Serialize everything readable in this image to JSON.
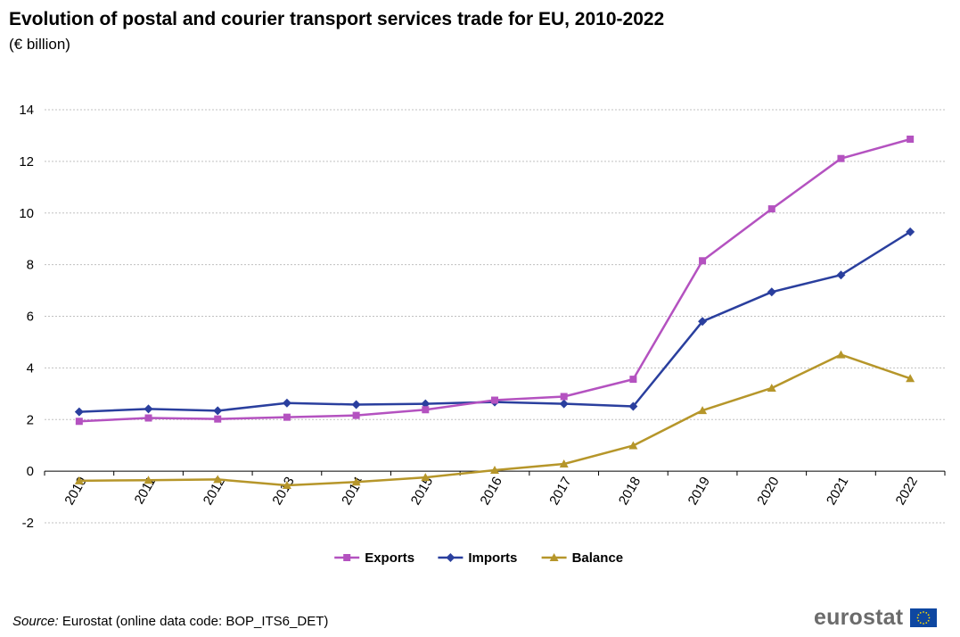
{
  "header": {
    "title": "Evolution of postal and courier transport services trade for EU, 2010-2022",
    "subtitle": "(€ billion)"
  },
  "source": {
    "label": "Source:",
    "text": " Eurostat (online data code: BOP_ITS6_DET)"
  },
  "logo": {
    "text": "eurostat",
    "flag_color": "#0e47a1",
    "star_color": "#ffdd00"
  },
  "chart_data": {
    "type": "line",
    "title": "Evolution of postal and courier transport services trade for EU, 2010-2022",
    "subtitle": "(€ billion)",
    "xlabel": "",
    "ylabel": "",
    "ylim": [
      -2,
      14
    ],
    "yticks": [
      "-2",
      "0",
      "2",
      "4",
      "6",
      "8",
      "10",
      "12",
      "14"
    ],
    "yticks_values": [
      -2,
      0,
      2,
      4,
      6,
      8,
      10,
      12,
      14
    ],
    "grid": true,
    "legend_position": "bottom",
    "categories": [
      "2010",
      "2011",
      "2012",
      "2013",
      "2014",
      "2015",
      "2016",
      "2017",
      "2018",
      "2019",
      "2020",
      "2021",
      "2022"
    ],
    "series": [
      {
        "name": "Exports",
        "color": "#b452c0",
        "marker": "square",
        "values": [
          1.93,
          2.06,
          2.02,
          2.09,
          2.16,
          2.38,
          2.75,
          2.89,
          3.56,
          8.15,
          10.16,
          12.11,
          12.86
        ]
      },
      {
        "name": "Imports",
        "color": "#2a3f9e",
        "marker": "diamond",
        "values": [
          2.3,
          2.41,
          2.34,
          2.64,
          2.58,
          2.61,
          2.68,
          2.61,
          2.51,
          5.8,
          6.94,
          7.6,
          9.27
        ]
      },
      {
        "name": "Balance",
        "color": "#b6962a",
        "marker": "triangle",
        "values": [
          -0.37,
          -0.35,
          -0.32,
          -0.55,
          -0.42,
          -0.24,
          0.04,
          0.28,
          0.99,
          2.35,
          3.22,
          4.51,
          3.59
        ]
      }
    ]
  }
}
